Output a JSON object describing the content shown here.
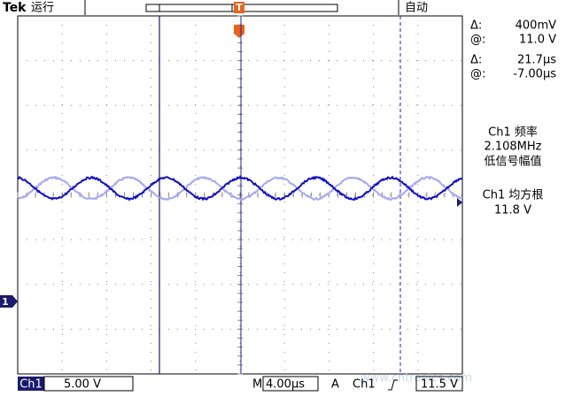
{
  "header": {
    "brand": "Tek",
    "status": "运行",
    "trigger_mark": "T",
    "mode": "自动"
  },
  "readout": [
    {
      "label": "Δ:",
      "value": "400mV"
    },
    {
      "label": "@:",
      "value": "11.0 V"
    },
    {
      "label": "Δ:",
      "value": "21.7µs"
    },
    {
      "label": "@:",
      "value": "-7.00µs"
    }
  ],
  "measurements": [
    "Ch1 频率",
    "2.108MHz",
    "低信号幅值",
    "Ch1 均方根",
    "11.8 V"
  ],
  "channel_marker": "1",
  "footer": {
    "channel": "Ch1",
    "scale": "5.00 V",
    "timebase_label": "M",
    "timebase": "4.00µs",
    "trigger_label": "A",
    "trigger_source": "Ch1",
    "trigger_level": "11.5 V"
  },
  "watermark": "www.cntronics.com"
}
